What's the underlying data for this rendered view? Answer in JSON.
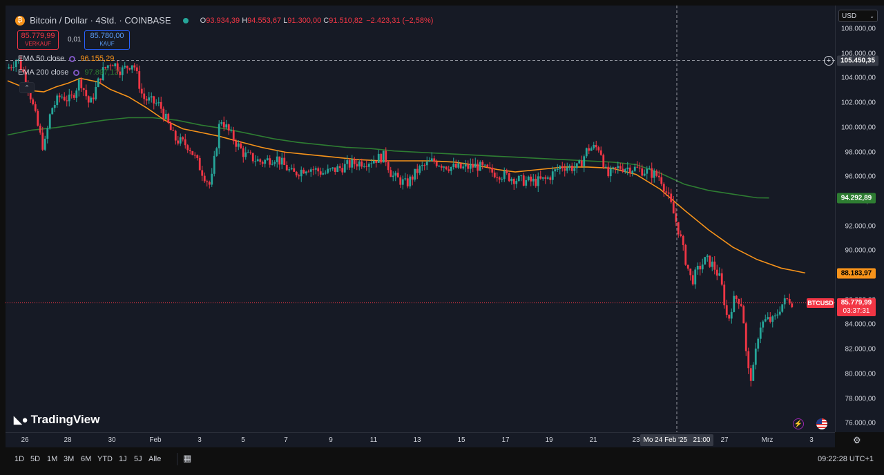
{
  "header": {
    "symbol_title": "Bitcoin / Dollar · 4Std. · COINBASE",
    "ohlc": {
      "o_label": "O",
      "o_value": "93.934,39",
      "h_label": "H",
      "h_value": "94.553,67",
      "l_label": "L",
      "l_value": "91.300,00",
      "c_label": "C",
      "c_value": "91.510,82",
      "change": "−2.423,31 (−2,58%)"
    },
    "sell_price": "85.779,99",
    "sell_label": "VERKAUF",
    "spread": "0,01",
    "buy_price": "85.780,00",
    "buy_label": "KAUF",
    "indicators": [
      {
        "name": "EMA 50 close",
        "value": "96.155,29",
        "color": "#f7931a"
      },
      {
        "name": "EMA 200 close",
        "value": "97.897,12",
        "color": "#2e7d32"
      }
    ]
  },
  "currency_select": "USD",
  "price_axis": {
    "ticks": [
      "108.000,00",
      "106.000,00",
      "104.000,00",
      "102.000,00",
      "100.000,00",
      "98.000,00",
      "96.000,00",
      "94.000,00",
      "92.000,00",
      "90.000,00",
      "88.000,00",
      "86.000,00",
      "84.000,00",
      "82.000,00",
      "80.000,00",
      "78.000,00",
      "76.000,00"
    ],
    "crosshair_price": "105.450,35",
    "ema200_tag": "94.292,89",
    "ema50_tag": "88.183,97",
    "symbol_tag": "BTCUSD",
    "last_price_tag": "85.779,99",
    "countdown": "03:37:31"
  },
  "time_axis": {
    "labels": [
      "26",
      "28",
      "30",
      "Feb",
      "3",
      "5",
      "7",
      "9",
      "11",
      "13",
      "15",
      "17",
      "19",
      "21",
      "23",
      "27",
      "Mrz",
      "3"
    ],
    "crosshair_time": "Mo 24 Feb '25   21:00"
  },
  "brand": "TradingView",
  "bottom_bar": {
    "ranges": [
      "1D",
      "5D",
      "1M",
      "3M",
      "6M",
      "YTD",
      "1J",
      "5J",
      "Alle"
    ],
    "clock": "09:22:28 UTC+1"
  },
  "colors": {
    "up": "#26a69a",
    "down": "#f23645",
    "ema50": "#f7931a",
    "ema200": "#2e7d32",
    "background": "#161a25"
  },
  "chart_data": {
    "type": "candlestick",
    "title": "Bitcoin / Dollar · 4Std. · COINBASE",
    "x_range": [
      "25 Jan",
      "3 Mrz"
    ],
    "ylim": [
      75500,
      109200
    ],
    "grid": false,
    "series": [
      {
        "name": "EMA 50 close",
        "type": "line",
        "points": [
          [
            0,
            103800
          ],
          [
            10,
            103400
          ],
          [
            20,
            103000
          ],
          [
            30,
            102900
          ],
          [
            40,
            103300
          ],
          [
            50,
            103600
          ],
          [
            60,
            104000
          ],
          [
            75,
            103700
          ],
          [
            85,
            103100
          ],
          [
            100,
            102500
          ],
          [
            115,
            101600
          ],
          [
            130,
            100600
          ],
          [
            145,
            99900
          ],
          [
            160,
            99600
          ],
          [
            175,
            99300
          ],
          [
            190,
            98900
          ],
          [
            210,
            98400
          ],
          [
            230,
            98000
          ],
          [
            250,
            97800
          ],
          [
            270,
            97600
          ],
          [
            290,
            97400
          ],
          [
            310,
            97300
          ],
          [
            330,
            97300
          ],
          [
            350,
            97300
          ],
          [
            370,
            97200
          ],
          [
            390,
            96900
          ],
          [
            405,
            96600
          ],
          [
            420,
            96400
          ],
          [
            440,
            96600
          ],
          [
            460,
            96800
          ],
          [
            480,
            96800
          ],
          [
            500,
            96700
          ],
          [
            520,
            96200
          ],
          [
            540,
            95000
          ],
          [
            560,
            93300
          ],
          [
            580,
            91700
          ],
          [
            600,
            90300
          ],
          [
            620,
            89300
          ],
          [
            640,
            88600
          ],
          [
            660,
            88200
          ]
        ]
      },
      {
        "name": "EMA 200 close",
        "type": "line",
        "points": [
          [
            0,
            99400
          ],
          [
            20,
            99800
          ],
          [
            40,
            100000
          ],
          [
            60,
            100300
          ],
          [
            80,
            100600
          ],
          [
            100,
            100800
          ],
          [
            120,
            100800
          ],
          [
            140,
            100600
          ],
          [
            160,
            100200
          ],
          [
            180,
            99900
          ],
          [
            200,
            99500
          ],
          [
            220,
            99100
          ],
          [
            240,
            98800
          ],
          [
            260,
            98600
          ],
          [
            280,
            98400
          ],
          [
            300,
            98300
          ],
          [
            320,
            98100
          ],
          [
            340,
            98000
          ],
          [
            360,
            97900
          ],
          [
            380,
            97800
          ],
          [
            400,
            97700
          ],
          [
            420,
            97600
          ],
          [
            440,
            97500
          ],
          [
            460,
            97400
          ],
          [
            480,
            97300
          ],
          [
            500,
            97200
          ],
          [
            520,
            97000
          ],
          [
            540,
            96300
          ],
          [
            560,
            95400
          ],
          [
            580,
            94900
          ],
          [
            600,
            94600
          ],
          [
            620,
            94300
          ],
          [
            630,
            94290
          ]
        ]
      }
    ],
    "current_price": 85779.99,
    "crosshair": {
      "price": 105450.35,
      "time": "Mo 24 Feb '25 21:00"
    }
  }
}
